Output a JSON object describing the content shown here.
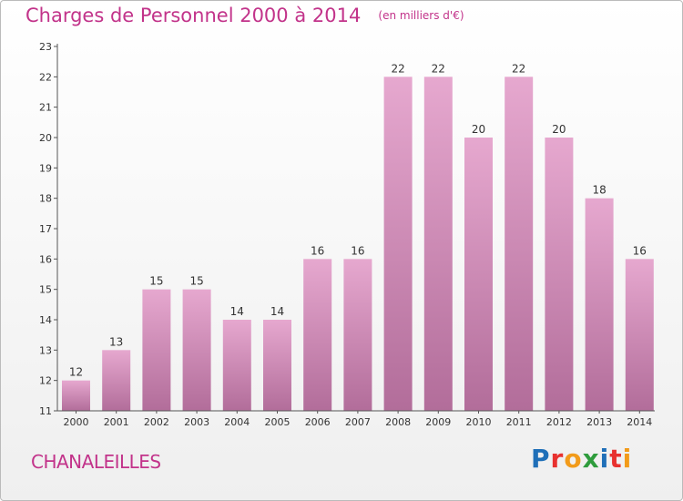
{
  "chart_data": {
    "type": "bar",
    "title": "Charges de Personnel 2000 à 2014",
    "unit_note": "(en milliers d'€)",
    "categories": [
      "2000",
      "2001",
      "2002",
      "2003",
      "2004",
      "2005",
      "2006",
      "2007",
      "2008",
      "2009",
      "2010",
      "2011",
      "2012",
      "2013",
      "2014"
    ],
    "values": [
      12,
      13,
      15,
      15,
      14,
      14,
      16,
      16,
      22,
      22,
      20,
      22,
      20,
      18,
      16
    ],
    "data_labels": [
      "12",
      "13",
      "15",
      "15",
      "14",
      "14",
      "16",
      "16",
      "22",
      "22",
      "20",
      "22",
      "20",
      "18",
      "16"
    ],
    "ylim": [
      11,
      23
    ],
    "yticks": [
      11,
      12,
      13,
      14,
      15,
      16,
      17,
      18,
      19,
      20,
      21,
      22,
      23
    ],
    "grid": false,
    "bar_color_top": "#e6a8cf",
    "bar_color_bottom": "#b26d9a",
    "title_color": "#c2338a"
  },
  "footer": {
    "commune": "CHANALEILLES",
    "logo_letters": [
      "P",
      "r",
      "o",
      "x",
      "i",
      "t",
      "i"
    ],
    "logo_colors": [
      "#1f6fb8",
      "#e8312f",
      "#f29b1a",
      "#2e9c3c",
      "#1f6fb8",
      "#e8312f",
      "#f29b1a"
    ]
  }
}
